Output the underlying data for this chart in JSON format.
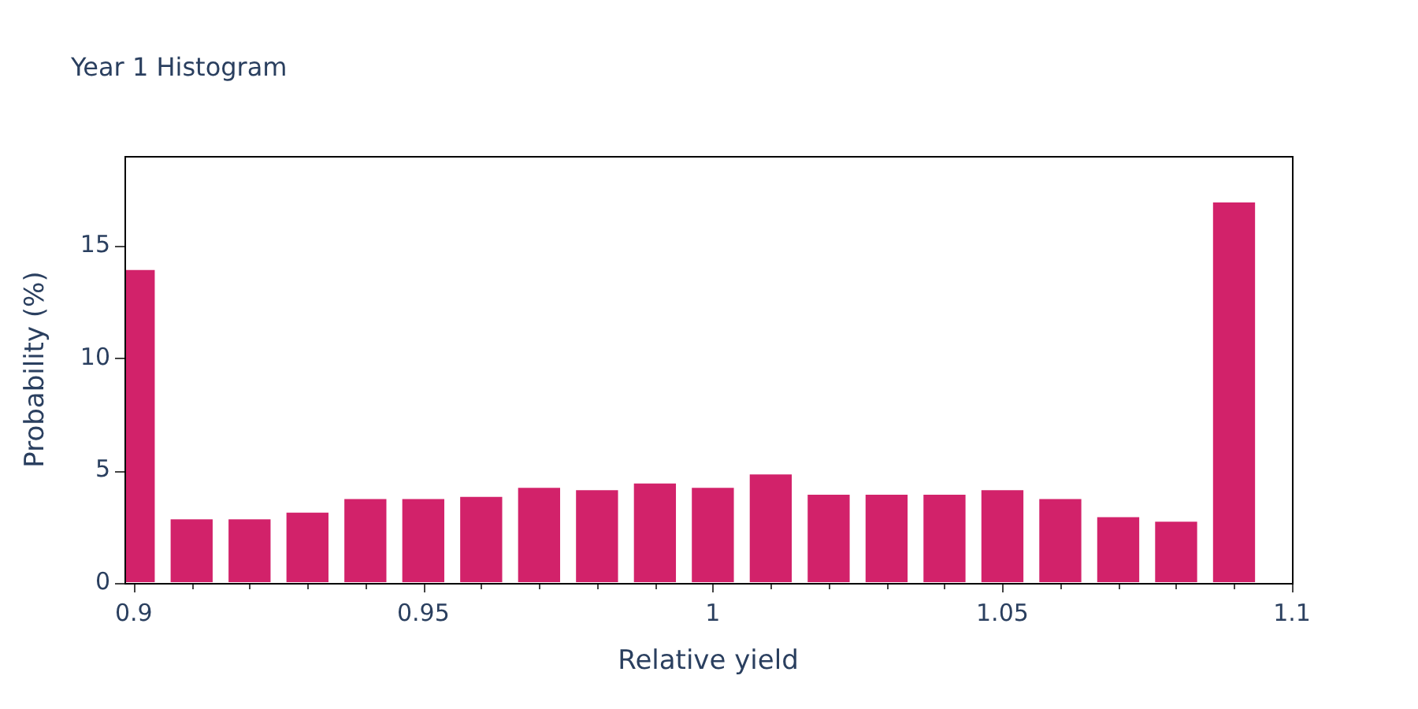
{
  "chart_data": {
    "type": "histogram",
    "title": "Year 1 Histogram",
    "xlabel": "Relative yield",
    "ylabel": "Probability (%)",
    "bins": [
      0.895,
      0.905,
      0.915,
      0.925,
      0.935,
      0.945,
      0.955,
      0.965,
      0.975,
      0.985,
      0.995,
      1.005,
      1.015,
      1.025,
      1.035,
      1.045,
      1.055,
      1.065,
      1.075,
      1.085,
      1.095
    ],
    "values": [
      14.0,
      2.9,
      2.9,
      3.2,
      3.8,
      3.8,
      3.9,
      4.3,
      4.2,
      4.5,
      4.3,
      4.9,
      4.0,
      4.0,
      4.0,
      4.2,
      3.8,
      3.0,
      2.8,
      17.0
    ],
    "color": "#d2226a",
    "xlim": [
      0.8984,
      1.1
    ],
    "xticks": [
      0.9,
      {
        "value": 0.91,
        "label": null
      },
      {
        "value": 0.92,
        "label": null
      },
      {
        "value": 0.93,
        "label": null
      },
      {
        "value": 0.94,
        "label": null
      },
      0.95,
      {
        "value": 0.96,
        "label": null
      },
      {
        "value": 0.97,
        "label": null
      },
      {
        "value": 0.98,
        "label": null
      },
      {
        "value": 0.99,
        "label": null
      },
      1,
      {
        "value": 1.01,
        "label": null
      },
      {
        "value": 1.02,
        "label": null
      },
      {
        "value": 1.03,
        "label": null
      },
      {
        "value": 1.04,
        "label": null
      },
      1.05,
      {
        "value": 1.06,
        "label": null
      },
      {
        "value": 1.07,
        "label": null
      },
      {
        "value": 1.08,
        "label": null
      },
      {
        "value": 1.09,
        "label": null
      },
      1.1
    ],
    "ylim": [
      0,
      19
    ],
    "yticks": [
      0,
      5,
      10,
      15
    ]
  }
}
